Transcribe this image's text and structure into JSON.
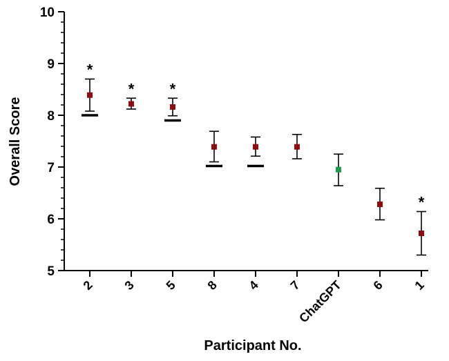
{
  "chart_data": {
    "type": "scatter",
    "xlabel": "Participant No.",
    "ylabel": "Overall Score",
    "ylim": [
      5,
      10
    ],
    "y_major_ticks": [
      5,
      6,
      7,
      8,
      9,
      10
    ],
    "y_minor_step": 0.2,
    "categories": [
      "2",
      "3",
      "5",
      "8",
      "4",
      "7",
      "ChatGPT",
      "6",
      "1"
    ],
    "means": [
      8.39,
      8.22,
      8.16,
      7.39,
      7.39,
      7.39,
      6.95,
      6.28,
      5.72
    ],
    "error_low": [
      8.08,
      8.12,
      7.99,
      7.1,
      7.21,
      7.16,
      6.64,
      5.98,
      5.3
    ],
    "error_high": [
      8.7,
      8.33,
      8.33,
      7.69,
      7.58,
      7.63,
      7.25,
      6.59,
      6.14
    ],
    "reference_lines": [
      8.0,
      null,
      7.9,
      7.02,
      7.02,
      null,
      null,
      null,
      null
    ],
    "significance_markers": [
      "*",
      "*",
      "*",
      "",
      "",
      "",
      "",
      "",
      "*"
    ],
    "colors": {
      "participant": "#8b0d0d",
      "chatgpt": "#1f9a4c",
      "axis": "#000000"
    },
    "highlight_category": "ChatGPT"
  }
}
